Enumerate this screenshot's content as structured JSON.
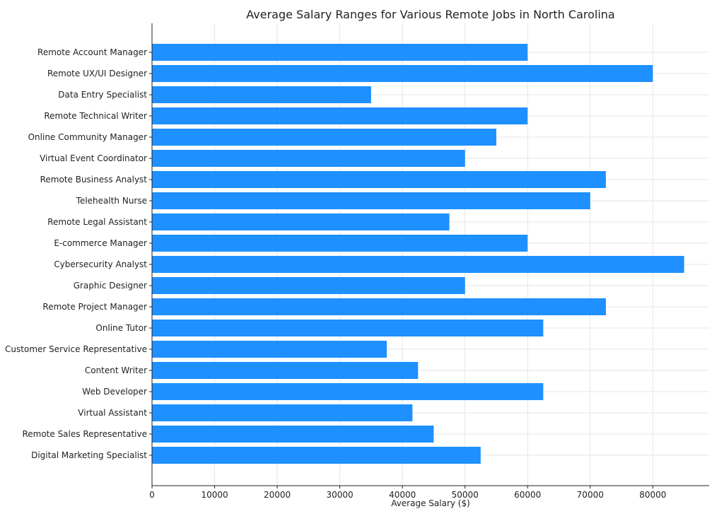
{
  "chart_data": {
    "type": "bar",
    "orientation": "horizontal",
    "title": "Average Salary Ranges for Various Remote Jobs in North Carolina",
    "xlabel": "Average Salary ($)",
    "ylabel": "",
    "xlim": [
      0,
      89000
    ],
    "xticks": [
      0,
      10000,
      20000,
      30000,
      40000,
      50000,
      60000,
      70000,
      80000
    ],
    "grid": true,
    "bar_color": "#1e90ff",
    "categories": [
      "Remote Account Manager",
      "Remote UX/UI Designer",
      "Data Entry Specialist",
      "Remote Technical Writer",
      "Online Community Manager",
      "Virtual Event Coordinator",
      "Remote Business Analyst",
      "Telehealth Nurse",
      "Remote Legal Assistant",
      "E-commerce Manager",
      "Cybersecurity Analyst",
      "Graphic Designer",
      "Remote Project Manager",
      "Online Tutor",
      "Customer Service Representative",
      "Content Writer",
      "Web Developer",
      "Virtual Assistant",
      "Remote Sales Representative",
      "Digital Marketing Specialist"
    ],
    "values": [
      60000,
      80000,
      35000,
      60000,
      55000,
      50000,
      72500,
      70000,
      47500,
      60000,
      85000,
      50000,
      72500,
      62500,
      37500,
      42500,
      62500,
      41600,
      45000,
      52500
    ]
  }
}
